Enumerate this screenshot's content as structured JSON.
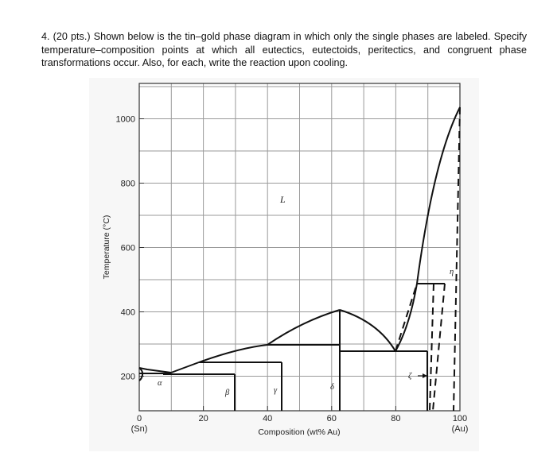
{
  "question": {
    "text": "4.  (20 pts.) Shown below is the tin–gold phase diagram in which only the single phases are labeled. Specify temperature–composition points at which all eutectics, eutectoids, peritectics, and congruent phase transformations occur. Also, for each, write the reaction upon cooling."
  },
  "diagram": {
    "ylabel": "Temperature (°C)",
    "xlabel": "Composition (wt% Au)",
    "y_ticks": [
      "200",
      "400",
      "600",
      "800",
      "1000"
    ],
    "x_ticks": [
      "0",
      "20",
      "40",
      "60",
      "80",
      "100"
    ],
    "x_end_labels": {
      "left": "(Sn)",
      "right": "(Au)"
    },
    "phases": {
      "L": "L",
      "alpha": "α",
      "beta": "β",
      "gamma": "γ",
      "delta": "δ",
      "zeta": "ζ",
      "eta": "η"
    }
  }
}
